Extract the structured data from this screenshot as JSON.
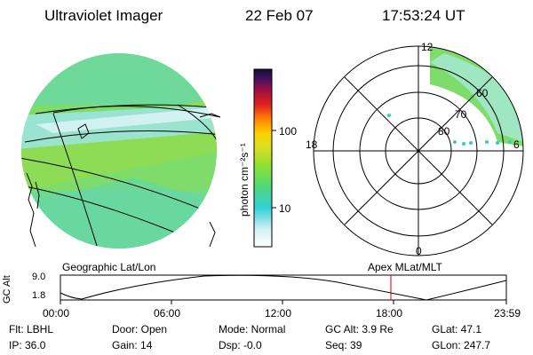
{
  "header": {
    "instrument": "Ultraviolet Imager",
    "date": "22 Feb 07",
    "time": "17:53:24 UT"
  },
  "colorbar": {
    "unit_label": "photon cm⁻²s⁻¹",
    "ticks": [
      "100",
      "10"
    ]
  },
  "polar_plot": {
    "mlt_labels": {
      "top": "12",
      "left": "18",
      "right": "6",
      "bottom": "0"
    },
    "mlat_labels": [
      "60",
      "70",
      "80"
    ]
  },
  "map_labels": {
    "left": "Geographic Lat/Lon",
    "right": "Apex  MLat/MLT"
  },
  "altitude_plot": {
    "axis_label": "GC Alt",
    "y_ticks": [
      "9.0",
      "1.8"
    ],
    "x_ticks": [
      "00:00",
      "06:00",
      "12:00",
      "18:00",
      "23:59"
    ],
    "marker_color": "#e00000"
  },
  "status": {
    "row1": {
      "flt": "Flt: LBHL",
      "door": "Door: Open",
      "mode": "Mode: Normal",
      "gc_alt": "GC Alt: 3.9 Re",
      "glat": "GLat:  47.1"
    },
    "row2": {
      "ip": "IP: 36.0",
      "gain": "Gain: 14",
      "dsp": "Dsp:   -0.0",
      "seq": "Seq: 39",
      "glon": "GLon: 247.7"
    }
  }
}
